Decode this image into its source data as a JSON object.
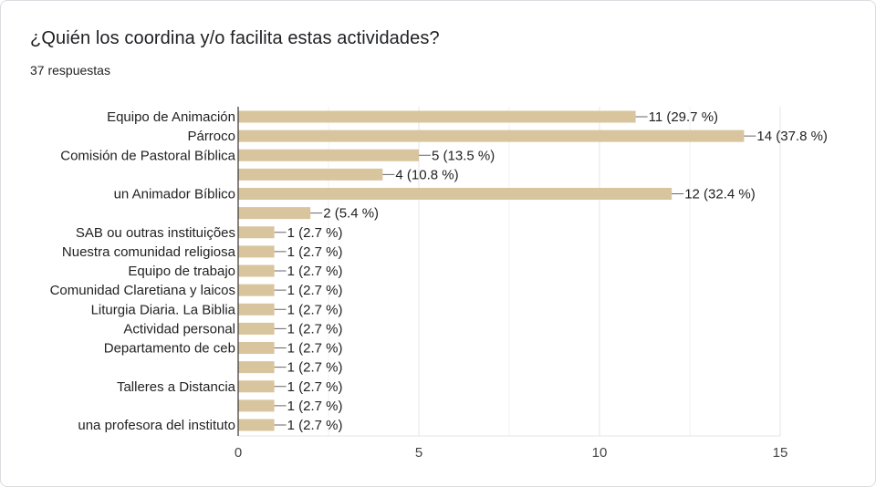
{
  "question": {
    "title": "¿Quién los coordina y/o facilita estas actividades?",
    "responses": "37 respuestas"
  },
  "colors": {
    "bar": "#d9c59d",
    "grid": "#e6e6e6",
    "axis": "#333333",
    "leader": "#666666"
  },
  "chart_data": {
    "type": "bar",
    "orientation": "horizontal",
    "title": "¿Quién los coordina y/o facilita estas actividades?",
    "xlabel": "",
    "ylabel": "",
    "xlim": [
      0,
      15
    ],
    "xticks": [
      0,
      5,
      10,
      15
    ],
    "grid": true,
    "categories": [
      "Equipo de Animación",
      "Párroco",
      "Comisión de Pastoral Bíblica",
      "",
      "un Animador Bíblico",
      "",
      "SAB ou outras instituições",
      "Nuestra comunidad religiosa",
      "Equipo de trabajo",
      "Comunidad Claretiana y laicos",
      "Liturgia Diaria. La Biblia",
      "Actividad personal",
      "Departamento de ceb",
      "",
      "Talleres a Distancia",
      "",
      "una profesora del instituto"
    ],
    "values": [
      11,
      14,
      5,
      4,
      12,
      2,
      1,
      1,
      1,
      1,
      1,
      1,
      1,
      1,
      1,
      1,
      1
    ],
    "data_labels": [
      "11 (29.7 %)",
      "14 (37.8 %)",
      "5 (13.5 %)",
      "4 (10.8 %)",
      "12 (32.4 %)",
      "2 (5.4 %)",
      "1 (2.7 %)",
      "1 (2.7 %)",
      "1 (2.7 %)",
      "1 (2.7 %)",
      "1 (2.7 %)",
      "1 (2.7 %)",
      "1 (2.7 %)",
      "1 (2.7 %)",
      "1 (2.7 %)",
      "1 (2.7 %)",
      "1 (2.7 %)"
    ]
  }
}
